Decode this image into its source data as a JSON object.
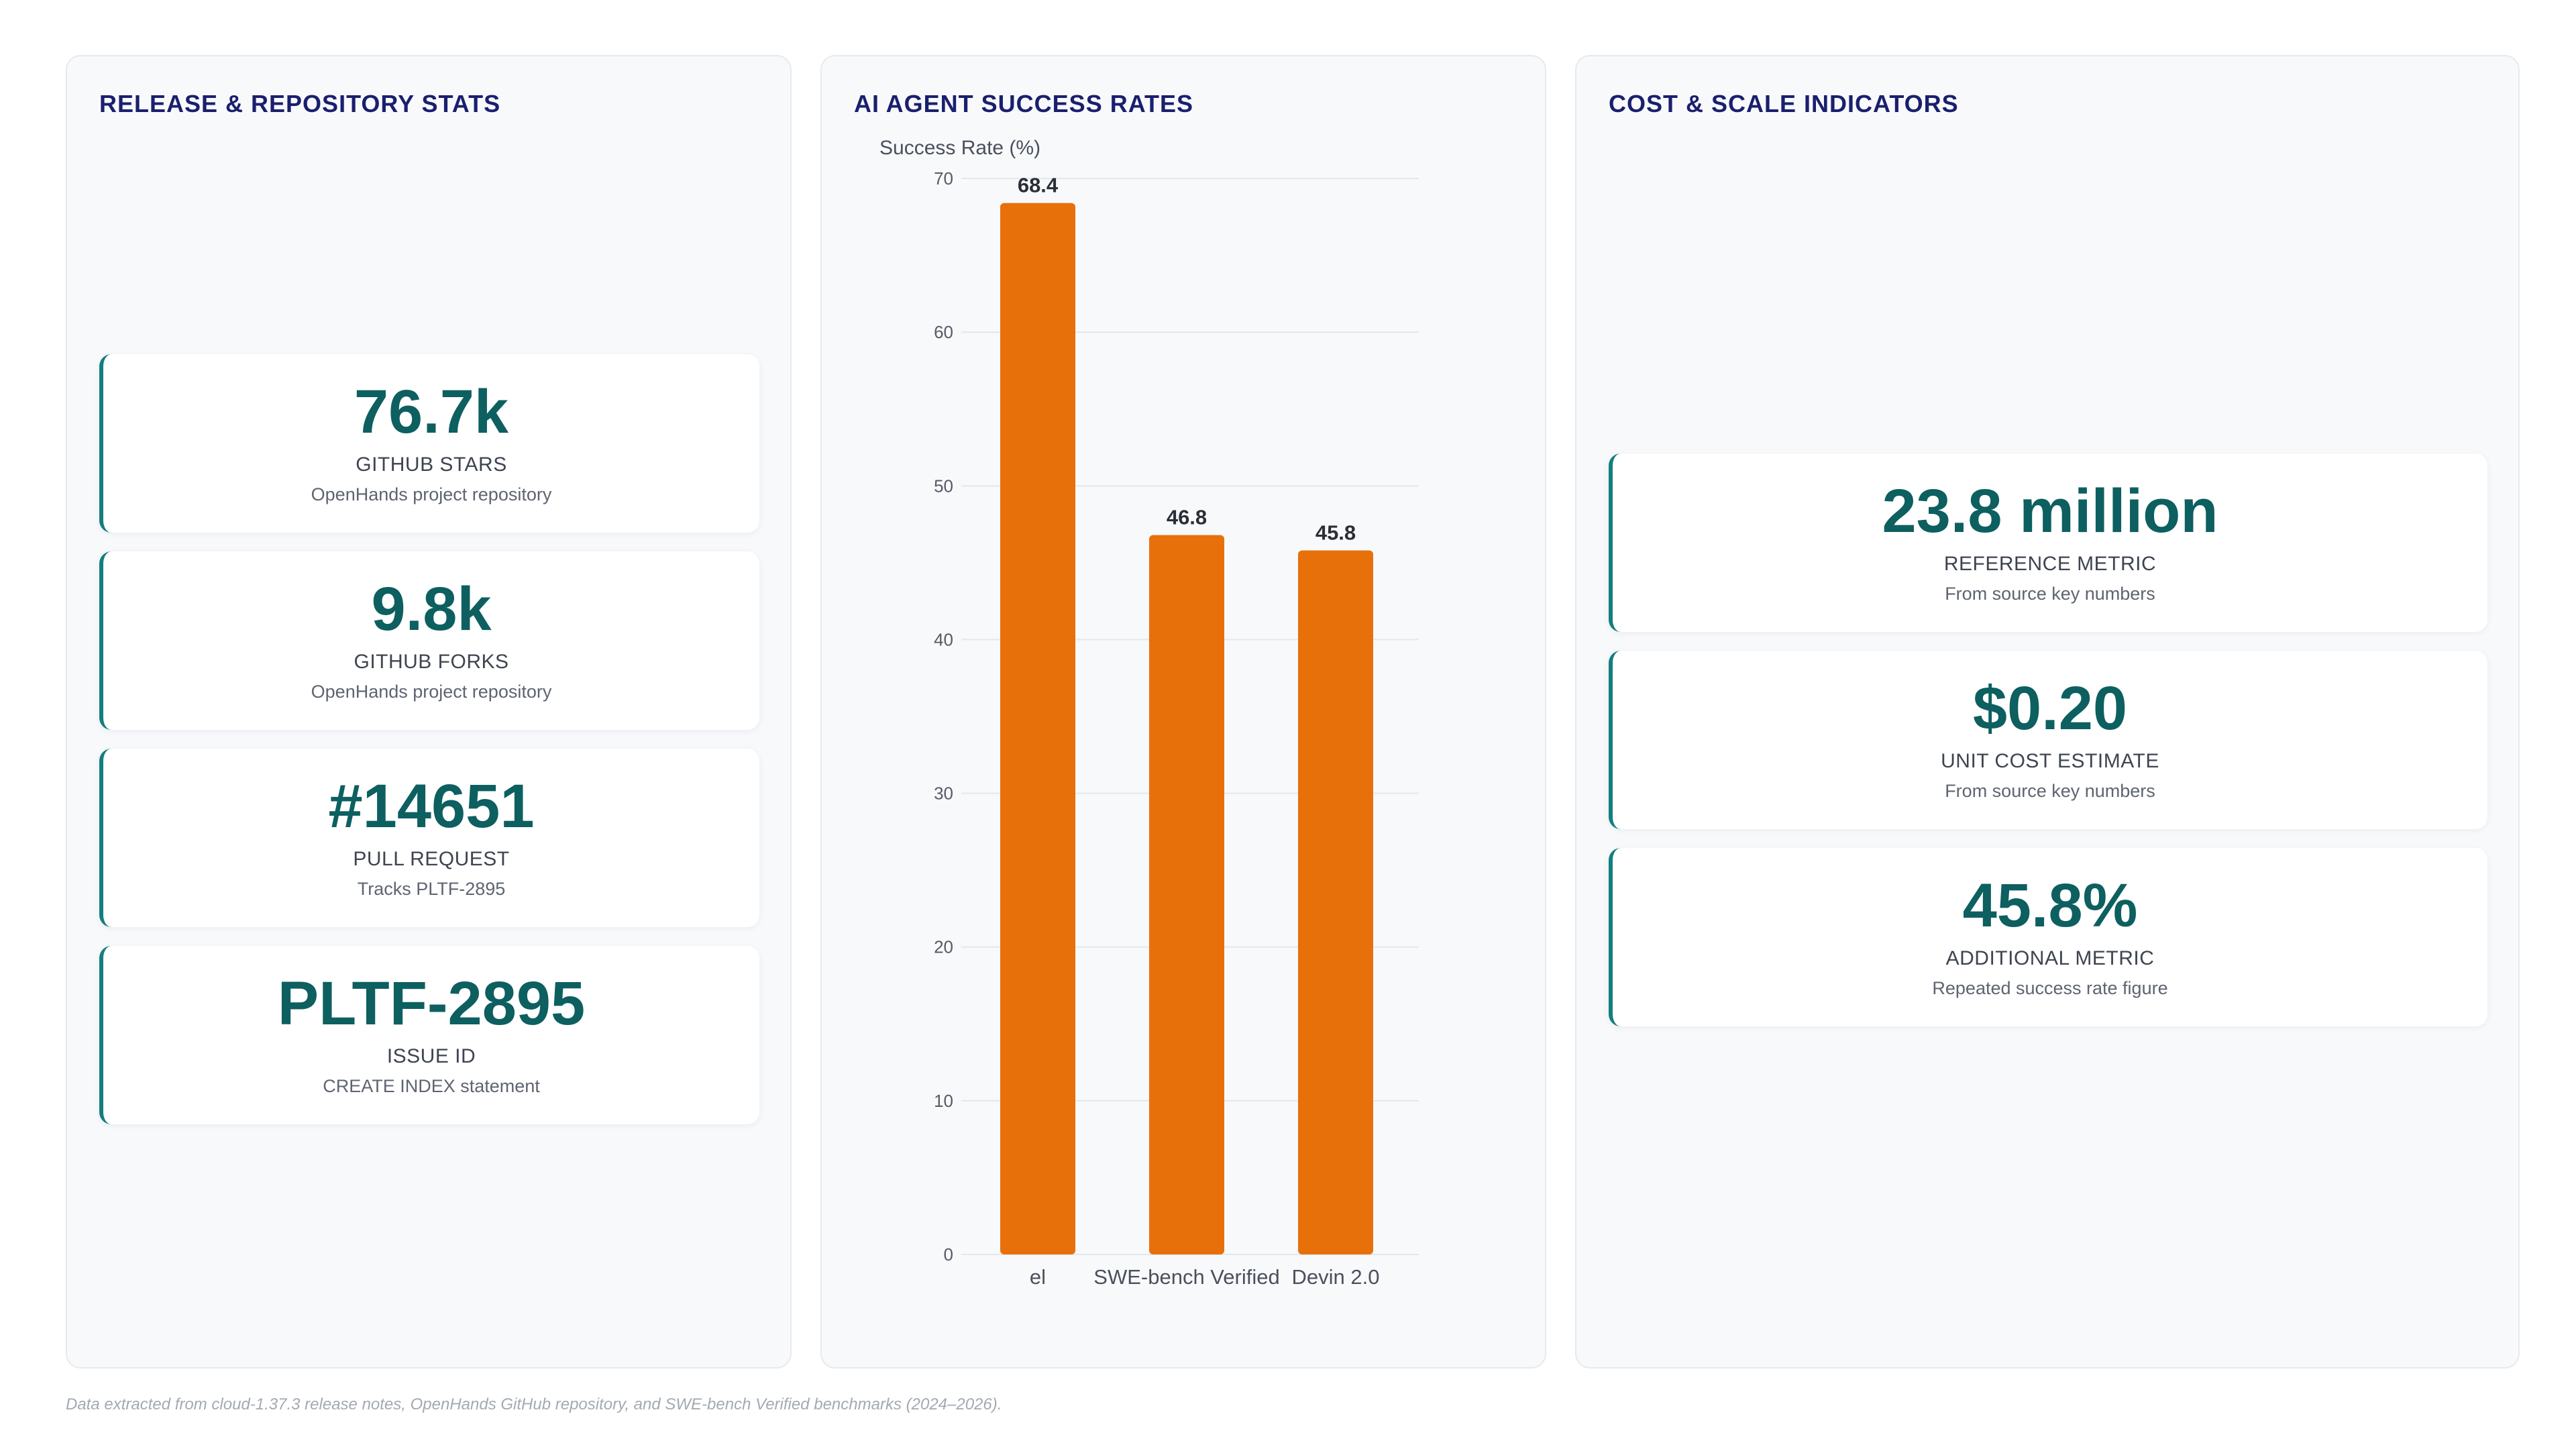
{
  "left_panel": {
    "title": "RELEASE & REPOSITORY STATS",
    "cards": [
      {
        "value": "76.7k",
        "label": "GITHUB STARS",
        "sub": "OpenHands project repository"
      },
      {
        "value": "9.8k",
        "label": "GITHUB FORKS",
        "sub": "OpenHands project repository"
      },
      {
        "value": "#14651",
        "label": "PULL REQUEST",
        "sub": "Tracks PLTF-2895"
      },
      {
        "value": "PLTF-2895",
        "label": "ISSUE ID",
        "sub": "CREATE INDEX statement"
      }
    ]
  },
  "mid_panel": {
    "title": "AI AGENT SUCCESS RATES"
  },
  "right_panel": {
    "title": "COST & SCALE INDICATORS",
    "cards": [
      {
        "value": "23.8 million",
        "label": "REFERENCE METRIC",
        "sub": "From source key numbers"
      },
      {
        "value": "$0.20",
        "label": "UNIT COST ESTIMATE",
        "sub": "From source key numbers"
      },
      {
        "value": "45.8%",
        "label": "ADDITIONAL METRIC",
        "sub": "Repeated success rate figure"
      }
    ]
  },
  "chart_data": {
    "type": "bar",
    "title": "AI AGENT SUCCESS RATES",
    "ylabel": "Success Rate (%)",
    "xlabel": "",
    "categories": [
      "el",
      "SWE-bench Verified",
      "Devin 2.0"
    ],
    "values": [
      68.4,
      46.8,
      45.8
    ],
    "value_labels": [
      "68.4",
      "46.8",
      "45.8"
    ],
    "ylim": [
      0,
      70
    ],
    "yticks": [
      0,
      10,
      20,
      30,
      40,
      50,
      60,
      70
    ],
    "grid": true,
    "legend": "none",
    "bar_color": "#e8700a"
  },
  "footnote": "Data extracted from cloud-1.37.3 release notes, OpenHands GitHub repository, and SWE-bench Verified benchmarks (2024–2026).",
  "colors": {
    "title": "#1a1f6e",
    "accent": "#137e7e",
    "value": "#0d5f60",
    "bar": "#e8700a"
  }
}
